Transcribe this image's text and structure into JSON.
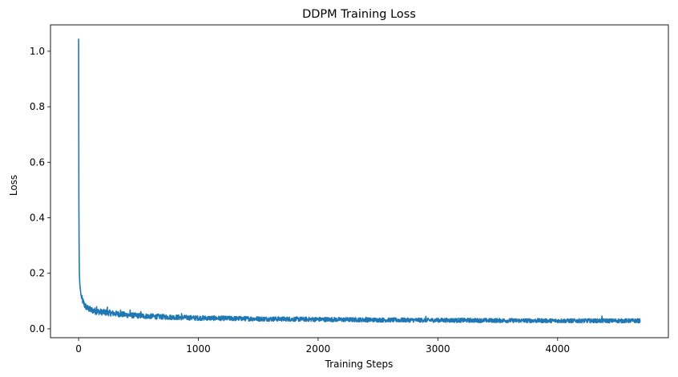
{
  "chart_data": {
    "type": "line",
    "title": "DDPM Training Loss",
    "xlabel": "Training Steps",
    "ylabel": "Loss",
    "xlim": [
      -235,
      4925
    ],
    "ylim": [
      -0.032,
      1.095
    ],
    "xticks": [
      0,
      1000,
      2000,
      3000,
      4000
    ],
    "xtick_labels": [
      "0",
      "1000",
      "2000",
      "3000",
      "4000"
    ],
    "yticks": [
      0.0,
      0.2,
      0.4,
      0.6,
      0.8,
      1.0
    ],
    "ytick_labels": [
      "0.0",
      "0.2",
      "0.4",
      "0.6",
      "0.8",
      "1.0"
    ],
    "grid": false,
    "legend": "none",
    "color": "#1f77b4",
    "total_steps": 4690,
    "series": [
      {
        "color": "#1f77b4",
        "x": [
          0,
          2,
          5,
          10,
          15,
          20,
          30,
          40,
          50,
          70,
          100,
          150,
          200,
          300,
          400,
          500,
          700,
          1000,
          1500,
          2000,
          2500,
          3000,
          3500,
          4000,
          4500,
          4690
        ],
        "y": [
          1.045,
          0.46,
          0.21,
          0.16,
          0.14,
          0.12,
          0.105,
          0.095,
          0.085,
          0.075,
          0.068,
          0.063,
          0.06,
          0.055,
          0.05,
          0.047,
          0.043,
          0.039,
          0.036,
          0.034,
          0.032,
          0.031,
          0.03,
          0.029,
          0.029,
          0.029
        ]
      }
    ],
    "spikes": [
      {
        "x": 150,
        "y": 0.08
      },
      {
        "x": 240,
        "y": 0.078
      },
      {
        "x": 350,
        "y": 0.068
      },
      {
        "x": 430,
        "y": 0.068
      },
      {
        "x": 520,
        "y": 0.062
      },
      {
        "x": 860,
        "y": 0.055
      },
      {
        "x": 1300,
        "y": 0.044
      },
      {
        "x": 2400,
        "y": 0.042
      },
      {
        "x": 2900,
        "y": 0.045
      },
      {
        "x": 4370,
        "y": 0.046
      }
    ]
  }
}
